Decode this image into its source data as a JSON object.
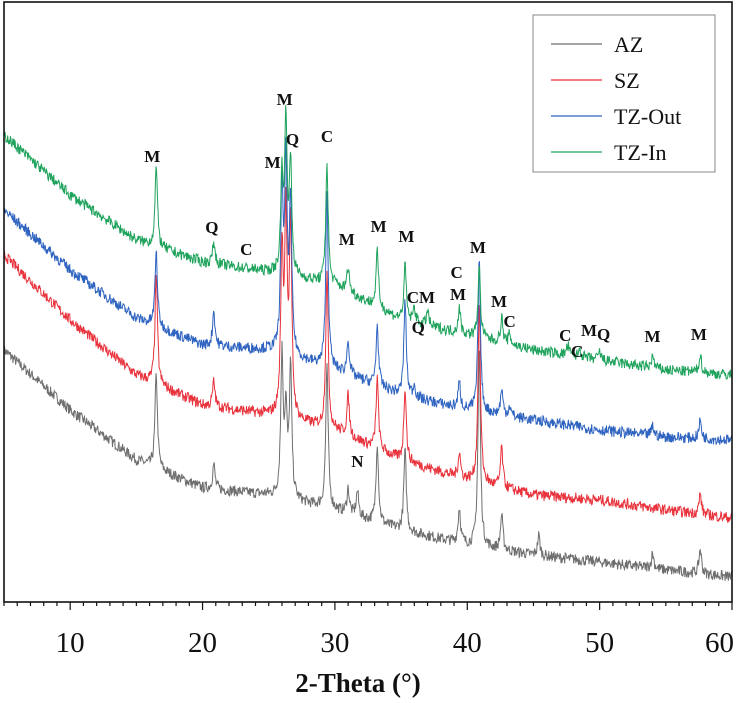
{
  "chart_data": {
    "type": "line",
    "title": "",
    "xlabel": "2-Theta (°)",
    "ylabel": "",
    "xlim": [
      5,
      60
    ],
    "ylim": [
      0,
      600
    ],
    "y_units": "relative intensity (a.u., unlabeled, curves offset)",
    "x_ticks": [
      10,
      20,
      30,
      40,
      50,
      60
    ],
    "x_tick_labels": [
      "10",
      "20",
      "30",
      "40",
      "50",
      "60"
    ],
    "grid": false,
    "legend_position": "top-right",
    "series": [
      {
        "name": "AZ",
        "color": "#6e6e6e",
        "background": [
          [
            5,
            252
          ],
          [
            10,
            192
          ],
          [
            15,
            142
          ],
          [
            20,
            114
          ],
          [
            25,
            107
          ],
          [
            30,
            92
          ],
          [
            35,
            72
          ],
          [
            40,
            57
          ],
          [
            45,
            47
          ],
          [
            50,
            40
          ],
          [
            55,
            32
          ],
          [
            60,
            25
          ]
        ],
        "peaks": [
          [
            16.5,
            95
          ],
          [
            20.85,
            25
          ],
          [
            26.0,
            140
          ],
          [
            26.3,
            80
          ],
          [
            26.65,
            130
          ],
          [
            29.4,
            140
          ],
          [
            31.0,
            25
          ],
          [
            31.7,
            25
          ],
          [
            33.2,
            80
          ],
          [
            35.3,
            80
          ],
          [
            39.4,
            35
          ],
          [
            40.9,
            200
          ],
          [
            42.6,
            35
          ],
          [
            45.4,
            20
          ],
          [
            54.0,
            15
          ],
          [
            57.6,
            25
          ]
        ]
      },
      {
        "name": "SZ",
        "color": "#e8323c",
        "background": [
          [
            5,
            347
          ],
          [
            10,
            282
          ],
          [
            15,
            227
          ],
          [
            20,
            197
          ],
          [
            25,
            187
          ],
          [
            30,
            172
          ],
          [
            35,
            142
          ],
          [
            40,
            122
          ],
          [
            45,
            107
          ],
          [
            50,
            102
          ],
          [
            55,
            92
          ],
          [
            60,
            84
          ]
        ],
        "peaks": [
          [
            16.5,
            110
          ],
          [
            20.85,
            25
          ],
          [
            26.0,
            160
          ],
          [
            26.3,
            200
          ],
          [
            26.65,
            190
          ],
          [
            29.4,
            155
          ],
          [
            31.0,
            40
          ],
          [
            33.2,
            70
          ],
          [
            35.3,
            75
          ],
          [
            39.4,
            25
          ],
          [
            40.9,
            180
          ],
          [
            42.6,
            40
          ],
          [
            57.6,
            20
          ]
        ]
      },
      {
        "name": "TZ-Out",
        "color": "#2e63c0",
        "background": [
          [
            5,
            392
          ],
          [
            10,
            332
          ],
          [
            15,
            284
          ],
          [
            20,
            257
          ],
          [
            25,
            252
          ],
          [
            30,
            232
          ],
          [
            35,
            207
          ],
          [
            40,
            192
          ],
          [
            45,
            182
          ],
          [
            50,
            172
          ],
          [
            55,
            165
          ],
          [
            60,
            162
          ]
        ],
        "peaks": [
          [
            16.5,
            75
          ],
          [
            20.85,
            35
          ],
          [
            26.0,
            160
          ],
          [
            26.3,
            185
          ],
          [
            26.65,
            150
          ],
          [
            29.4,
            175
          ],
          [
            31.0,
            35
          ],
          [
            33.2,
            60
          ],
          [
            35.3,
            95
          ],
          [
            36.0,
            12
          ],
          [
            39.4,
            25
          ],
          [
            40.9,
            150
          ],
          [
            42.6,
            25
          ],
          [
            43.2,
            10
          ],
          [
            54.0,
            10
          ],
          [
            57.6,
            18
          ]
        ]
      },
      {
        "name": "TZ-In",
        "color": "#1fa35c",
        "background": [
          [
            5,
            467
          ],
          [
            10,
            407
          ],
          [
            15,
            362
          ],
          [
            20,
            340
          ],
          [
            25,
            330
          ],
          [
            30,
            317
          ],
          [
            35,
            282
          ],
          [
            40,
            267
          ],
          [
            45,
            252
          ],
          [
            50,
            242
          ],
          [
            55,
            232
          ],
          [
            60,
            227
          ]
        ],
        "peaks": [
          [
            16.5,
            80
          ],
          [
            20.85,
            22
          ],
          [
            26.0,
            95
          ],
          [
            26.3,
            150
          ],
          [
            26.65,
            110
          ],
          [
            29.4,
            120
          ],
          [
            31.0,
            25
          ],
          [
            33.2,
            55
          ],
          [
            35.3,
            55
          ],
          [
            36.0,
            15
          ],
          [
            37.0,
            15
          ],
          [
            39.4,
            25
          ],
          [
            40.9,
            70
          ],
          [
            42.6,
            25
          ],
          [
            43.2,
            10
          ],
          [
            47.6,
            10
          ],
          [
            48.5,
            8
          ],
          [
            50.0,
            8
          ],
          [
            54.0,
            12
          ],
          [
            57.6,
            18
          ]
        ]
      }
    ],
    "annotations": [
      {
        "text": "M",
        "x": 16.2,
        "y": 440
      },
      {
        "text": "Q",
        "x": 20.7,
        "y": 369
      },
      {
        "text": "C",
        "x": 23.3,
        "y": 347
      },
      {
        "text": "M",
        "x": 25.3,
        "y": 434
      },
      {
        "text": "M",
        "x": 26.2,
        "y": 497
      },
      {
        "text": "Q",
        "x": 26.8,
        "y": 457
      },
      {
        "text": "C",
        "x": 29.4,
        "y": 460
      },
      {
        "text": "M",
        "x": 30.9,
        "y": 357
      },
      {
        "text": "M",
        "x": 33.3,
        "y": 370
      },
      {
        "text": "M",
        "x": 35.4,
        "y": 360
      },
      {
        "text": "CM",
        "x": 36.5,
        "y": 299
      },
      {
        "text": "Q",
        "x": 36.3,
        "y": 269
      },
      {
        "text": "C",
        "x": 39.2,
        "y": 324
      },
      {
        "text": "M",
        "x": 39.3,
        "y": 302
      },
      {
        "text": "M",
        "x": 40.8,
        "y": 349
      },
      {
        "text": "M",
        "x": 42.4,
        "y": 295
      },
      {
        "text": "C",
        "x": 43.2,
        "y": 275
      },
      {
        "text": "C",
        "x": 47.4,
        "y": 261
      },
      {
        "text": "C",
        "x": 48.3,
        "y": 245
      },
      {
        "text": "M",
        "x": 49.2,
        "y": 266
      },
      {
        "text": "Q",
        "x": 50.3,
        "y": 262
      },
      {
        "text": "M",
        "x": 54.0,
        "y": 260
      },
      {
        "text": "M",
        "x": 57.5,
        "y": 262
      },
      {
        "text": "N",
        "x": 31.7,
        "y": 135
      }
    ]
  }
}
